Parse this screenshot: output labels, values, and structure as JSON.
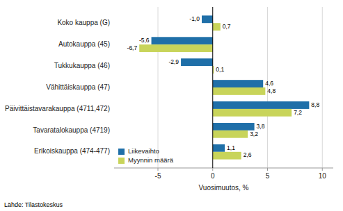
{
  "chart_data": {
    "type": "bar",
    "orientation": "horizontal",
    "categories": [
      "Erikoiskauppa (474-477)",
      "Tavaratalokauppa (4719)",
      "Päivittäistavarakauppa (4711,472)",
      "Vähittäiskauppa (47)",
      "Tukkukauppa (46)",
      "Autokauppa (45)",
      "Koko kauppa (G)"
    ],
    "series": [
      {
        "name": "Liikevaihto",
        "color": "#1F6FA8",
        "values": [
          1.1,
          3.8,
          8.8,
          4.6,
          -2.9,
          -5.6,
          -1.0
        ],
        "value_labels": [
          "1,1",
          "3,8",
          "8,8",
          "4,6",
          "-2,9",
          "-5,6",
          "-1,0"
        ]
      },
      {
        "name": "Myynnin määrä",
        "color": "#C8D45A",
        "values": [
          2.6,
          3.2,
          7.2,
          4.8,
          0.1,
          -6.7,
          0.7
        ],
        "value_labels": [
          "2,6",
          "3,2",
          "7,2",
          "4,8",
          "0,1",
          "-6,7",
          "0,7"
        ]
      }
    ],
    "xlabel": "Vuosimuutos, %",
    "xlim": [
      -9,
      11
    ],
    "xticks": [
      -5,
      0,
      5,
      10
    ],
    "grid": true,
    "legend": "lower left",
    "data_labels": true,
    "source": "Lähde: Tilastokeskus"
  }
}
